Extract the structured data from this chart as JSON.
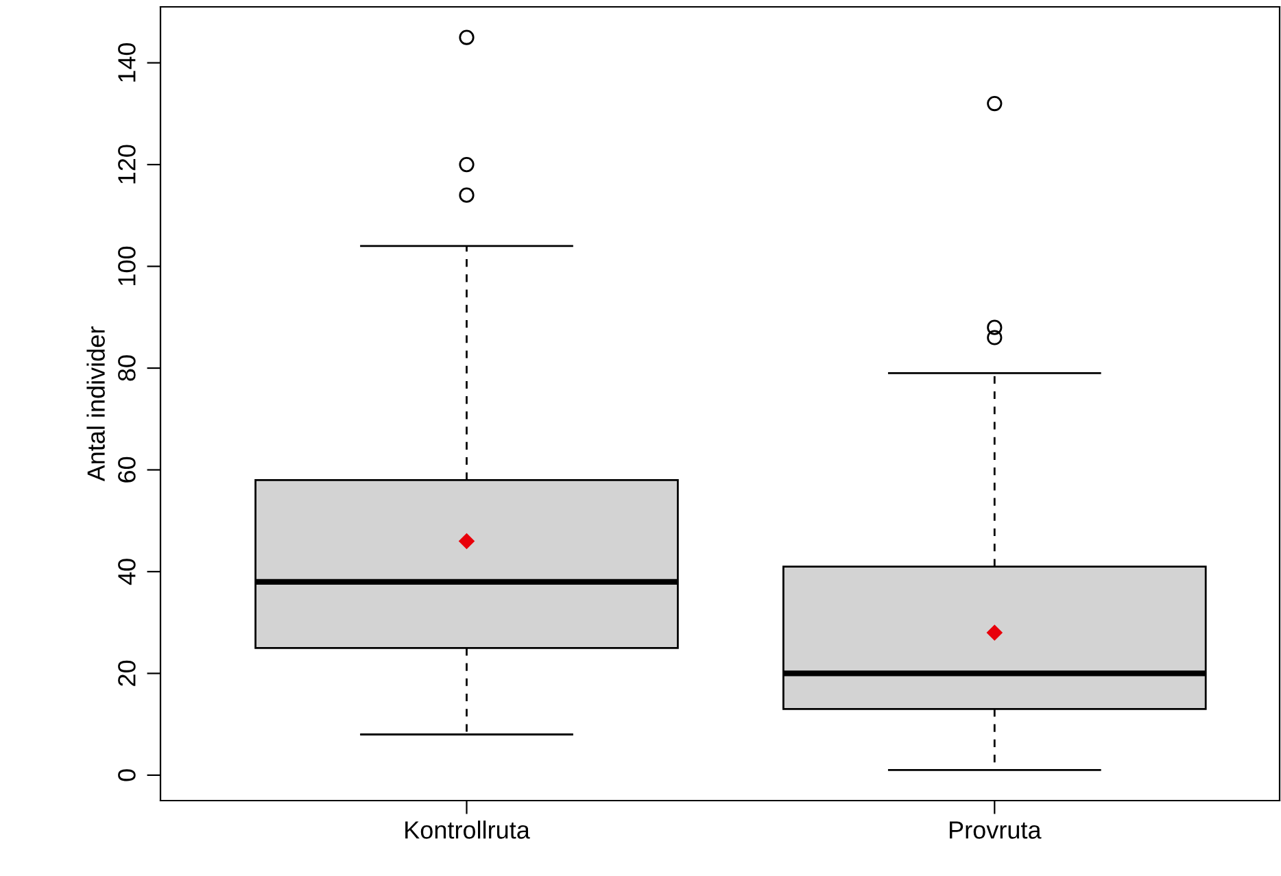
{
  "chart_data": {
    "type": "box",
    "ylabel": "Antal individer",
    "categories": [
      "Kontrollruta",
      "Provruta"
    ],
    "color": "#d3d3d3",
    "boxes": [
      {
        "low": 8,
        "q1": 25,
        "median": 38,
        "q3": 58,
        "high": 104,
        "mean": 46,
        "outliers": [
          114,
          120,
          145
        ]
      },
      {
        "low": 1,
        "q1": 13,
        "median": 20,
        "q3": 41,
        "high": 79,
        "mean": 28,
        "outliers": [
          86,
          88,
          132
        ]
      }
    ],
    "ylim": [
      -5,
      151
    ],
    "yticks": [
      0,
      20,
      40,
      60,
      80,
      100,
      120,
      140
    ],
    "grid": false,
    "legend": false
  }
}
